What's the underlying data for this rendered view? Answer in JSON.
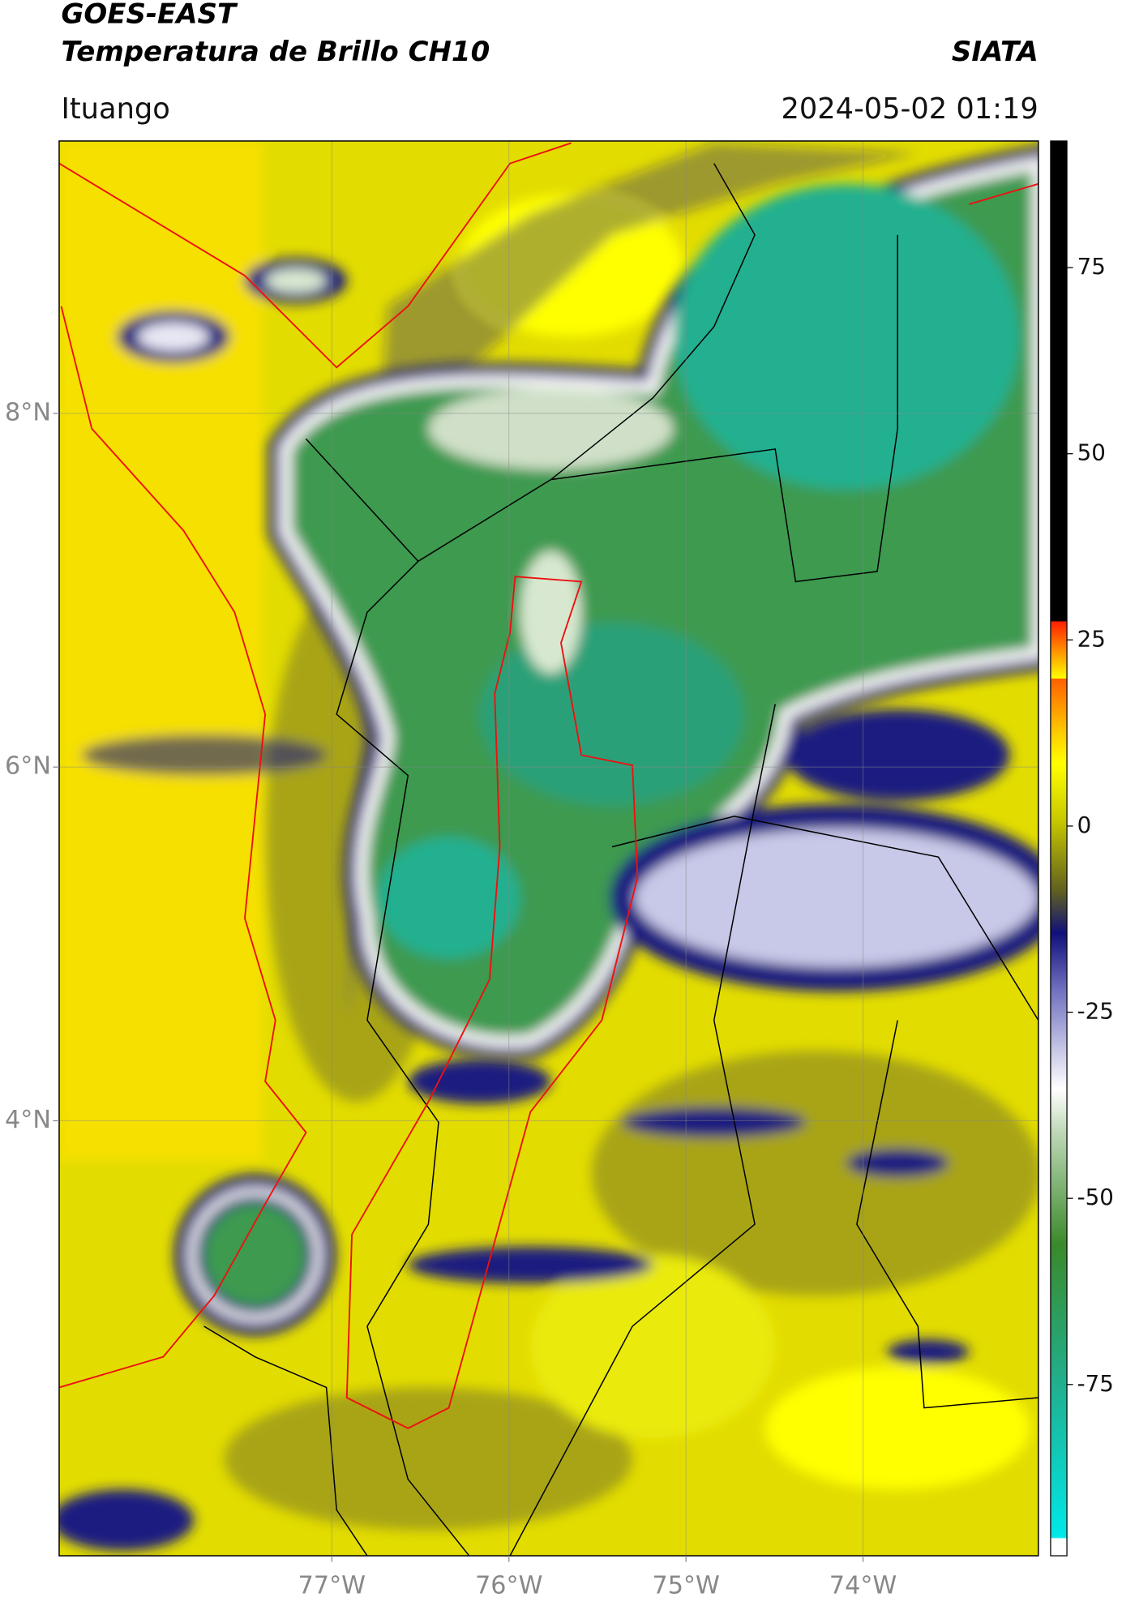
{
  "header": {
    "title": "GOES-EAST",
    "subtitle": "Temperatura de Brillo CH10",
    "source": "SIATA",
    "location": "Ituango",
    "datetime": "2024-05-02 01:19"
  },
  "map": {
    "lonlim": [
      -78.54,
      -73.01
    ],
    "latlim": [
      1.54,
      9.54
    ],
    "lon_ticks": [
      {
        "value": -77,
        "label": "77°W"
      },
      {
        "value": -76,
        "label": "76°W"
      },
      {
        "value": -75,
        "label": "75°W"
      },
      {
        "value": -74,
        "label": "74°W"
      }
    ],
    "lat_ticks": [
      {
        "value": 8,
        "label": "8°N"
      },
      {
        "value": 6,
        "label": "6°N"
      },
      {
        "value": 4,
        "label": "4°N"
      }
    ],
    "grid": true
  },
  "colorbar": {
    "lim": [
      -98,
      92
    ],
    "ticks": [
      75,
      50,
      25,
      0,
      -25,
      -50,
      -75
    ]
  }
}
